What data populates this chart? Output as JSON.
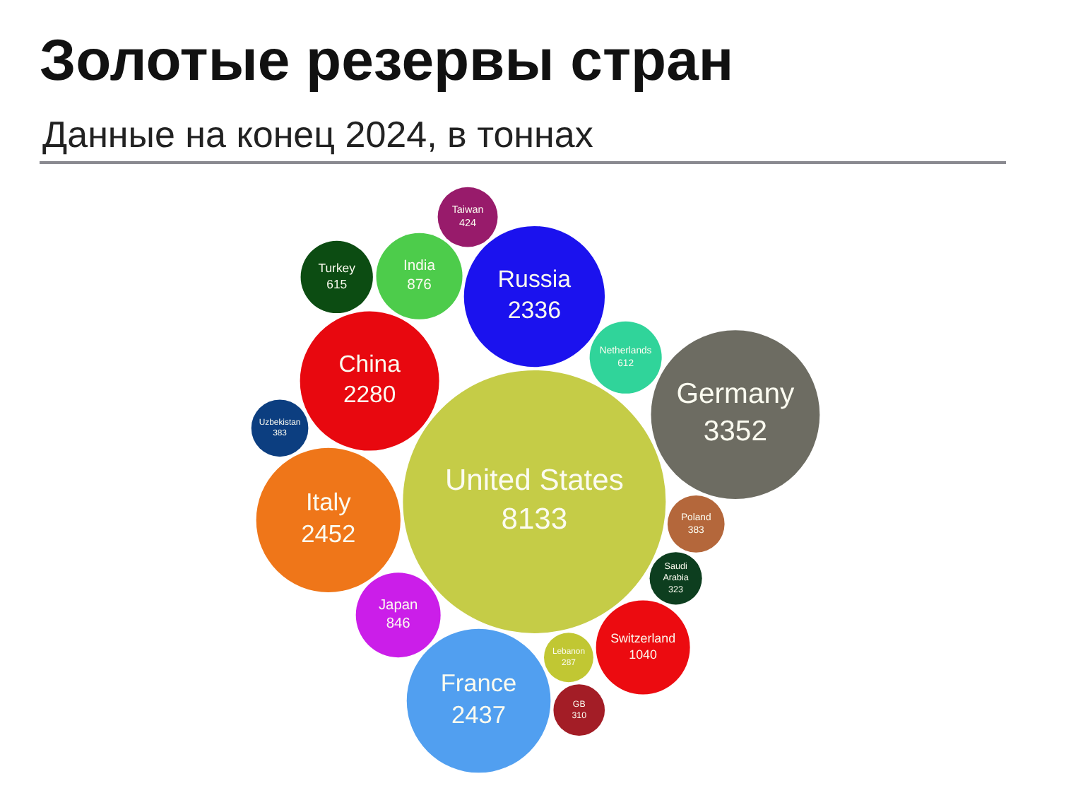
{
  "chart_data": {
    "type": "other",
    "title": "Золотые резервы стран",
    "subtitle": "Данные на конец 2024, в тоннах",
    "categories": [
      "United States",
      "Russia",
      "Netherlands",
      "Germany",
      "Poland",
      "Saudi Arabia",
      "Switzerland",
      "Lebanon",
      "France",
      "GB",
      "Japan",
      "Italy",
      "China",
      "Uzbekistan",
      "India",
      "Turkey",
      "Taiwan"
    ],
    "values": [
      8133,
      2336,
      612,
      3352,
      383,
      323,
      1040,
      287,
      2437,
      310,
      846,
      2452,
      2280,
      383,
      876,
      615,
      424
    ],
    "colors": [
      "#c5cc47",
      "#1b12ee",
      "#30d49a",
      "#6d6c62",
      "#b4673b",
      "#0d3e1f",
      "#ec0b10",
      "#c1c733",
      "#519ff0",
      "#a31d26",
      "#cb1ee9",
      "#ef7619",
      "#e8080f",
      "#0c3e80",
      "#4dcc4b",
      "#0c4c12",
      "#981b6b"
    ],
    "data_labels": true
  }
}
